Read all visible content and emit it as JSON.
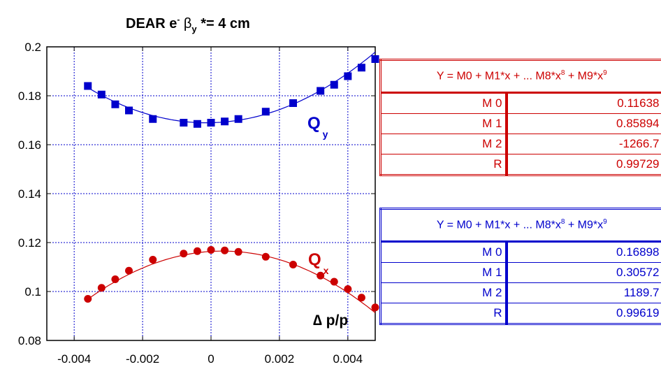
{
  "chart_data": {
    "type": "scatter",
    "title_parts": {
      "pre": "DEAR  e",
      "sup": "-",
      "mid": " β",
      "sub": "y",
      "post": " *= 4 cm"
    },
    "xlabel": "∆ p/p",
    "xlim": [
      -0.0048,
      0.0048
    ],
    "ylim": [
      0.08,
      0.2
    ],
    "x_ticks": [
      -0.004,
      -0.002,
      0,
      0.002,
      0.004
    ],
    "x_tick_labels": [
      "-0.004",
      "-0.002",
      "0",
      "0.002",
      "0.004"
    ],
    "y_ticks": [
      0.08,
      0.1,
      0.12,
      0.14,
      0.16,
      0.18,
      0.2
    ],
    "y_tick_labels": [
      "0.08",
      "0.1",
      "0.12",
      "0.14",
      "0.16",
      "0.18",
      "0.2"
    ],
    "grid": true,
    "series": [
      {
        "label_main": "Q",
        "label_sub": "y",
        "color": "#0000cc",
        "marker": "square",
        "x": [
          -0.0036,
          -0.0032,
          -0.0028,
          -0.0024,
          -0.0017,
          -0.0008,
          -0.0004,
          0.0,
          0.0004,
          0.0008,
          0.0016,
          0.0024,
          0.0032,
          0.0036,
          0.004,
          0.0044,
          0.0048
        ],
        "y": [
          0.184,
          0.1805,
          0.1765,
          0.174,
          0.1705,
          0.169,
          0.1685,
          0.169,
          0.1695,
          0.1705,
          0.1735,
          0.177,
          0.182,
          0.1845,
          0.188,
          0.1915,
          0.195
        ],
        "fit": [
          0.16898,
          0.30572,
          1189.7
        ]
      },
      {
        "label_main": "Q",
        "label_sub": "x",
        "color": "#cc0000",
        "marker": "circle",
        "x": [
          -0.0036,
          -0.0032,
          -0.0028,
          -0.0024,
          -0.0017,
          -0.0008,
          -0.0004,
          0.0,
          0.0004,
          0.0008,
          0.0016,
          0.0024,
          0.0032,
          0.0036,
          0.004,
          0.0044,
          0.0048
        ],
        "y": [
          0.097,
          0.1015,
          0.105,
          0.1085,
          0.113,
          0.1155,
          0.1165,
          0.117,
          0.1168,
          0.1162,
          0.1142,
          0.111,
          0.1065,
          0.104,
          0.101,
          0.0975,
          0.0935
        ],
        "fit": [
          0.11638,
          0.85894,
          -1266.7
        ]
      }
    ]
  },
  "fit_tables": {
    "red": {
      "header": {
        "a": "Y = M0 + M1*x + ... M8*x",
        "b": "8",
        "c": " + M9*x",
        "d": "9"
      },
      "rows": [
        {
          "name": "M 0",
          "value": "0.11638"
        },
        {
          "name": "M 1",
          "value": "0.85894"
        },
        {
          "name": "M 2",
          "value": "-1266.7"
        },
        {
          "name": "R",
          "value": "0.99729"
        }
      ]
    },
    "blue": {
      "header": {
        "a": "Y = M0 + M1*x + ... M8*x",
        "b": "8",
        "c": " + M9*x",
        "d": "9"
      },
      "rows": [
        {
          "name": "M 0",
          "value": "0.16898"
        },
        {
          "name": "M 1",
          "value": "0.30572"
        },
        {
          "name": "M 2",
          "value": "1189.7"
        },
        {
          "name": "R",
          "value": "0.99619"
        }
      ]
    }
  }
}
